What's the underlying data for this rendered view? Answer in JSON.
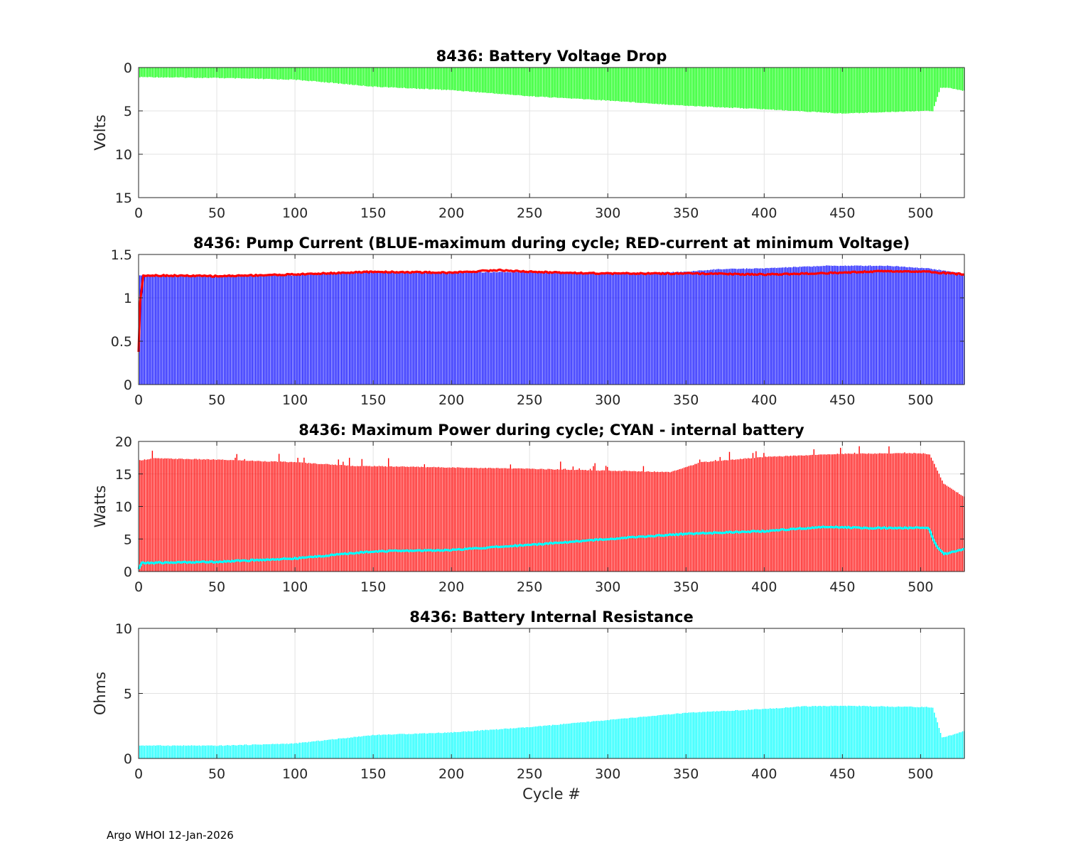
{
  "footer": "Argo WHOI 12-Jan-2026",
  "colors": {
    "voltage": "#00ff00",
    "pump_max": "#0000ff",
    "pump_min_volt": "#ff0000",
    "power": "#ff0000",
    "internal": "#00ffff",
    "resistance": "#00ffff"
  },
  "chart_data": [
    {
      "type": "bar",
      "title": "8436: Battery Voltage Drop",
      "xlabel": "",
      "ylabel": "Volts",
      "xlim": [
        0,
        528
      ],
      "ylim": [
        0,
        15
      ],
      "y_reversed": true,
      "xticks": [
        0,
        50,
        100,
        150,
        200,
        250,
        300,
        350,
        400,
        450,
        500
      ],
      "yticks": [
        0,
        5,
        10,
        15
      ],
      "grid": true,
      "series": [
        {
          "role": "bars",
          "color": "#00ff00",
          "keypoints": [
            [
              1,
              1.1
            ],
            [
              50,
              1.2
            ],
            [
              100,
              1.4
            ],
            [
              120,
              1.7
            ],
            [
              150,
              2.2
            ],
            [
              200,
              2.6
            ],
            [
              250,
              3.3
            ],
            [
              300,
              3.8
            ],
            [
              350,
              4.4
            ],
            [
              400,
              4.8
            ],
            [
              450,
              5.3
            ],
            [
              500,
              5.0
            ],
            [
              508,
              5.0
            ],
            [
              513,
              2.3
            ],
            [
              520,
              2.4
            ],
            [
              528,
              2.7
            ]
          ]
        }
      ]
    },
    {
      "type": "bar",
      "title": "8436: Pump Current (BLUE-maximum during cycle; RED-current at minimum Voltage)",
      "xlabel": "",
      "ylabel": "",
      "xlim": [
        0,
        528
      ],
      "ylim": [
        0,
        1.5
      ],
      "xticks": [
        0,
        50,
        100,
        150,
        200,
        250,
        300,
        350,
        400,
        450,
        500
      ],
      "yticks": [
        0,
        0.5,
        1,
        1.5
      ],
      "ytick_labels": [
        "0",
        "0.5",
        "1",
        "1.5"
      ],
      "grid": true,
      "series": [
        {
          "name": "BLUE-maximum during cycle",
          "role": "bars",
          "color": "#0000ff",
          "keypoints": [
            [
              1,
              1.26
            ],
            [
              50,
              1.25
            ],
            [
              100,
              1.26
            ],
            [
              150,
              1.3
            ],
            [
              200,
              1.29
            ],
            [
              250,
              1.3
            ],
            [
              300,
              1.28
            ],
            [
              350,
              1.3
            ],
            [
              370,
              1.33
            ],
            [
              400,
              1.34
            ],
            [
              440,
              1.37
            ],
            [
              480,
              1.37
            ],
            [
              505,
              1.34
            ],
            [
              528,
              1.28
            ]
          ]
        },
        {
          "name": "RED-current at minimum Voltage",
          "role": "line",
          "color": "#ff0000",
          "keypoints": [
            [
              0,
              0.38
            ],
            [
              1,
              0.95
            ],
            [
              3,
              1.26
            ],
            [
              50,
              1.25
            ],
            [
              100,
              1.27
            ],
            [
              150,
              1.3
            ],
            [
              200,
              1.29
            ],
            [
              230,
              1.32
            ],
            [
              250,
              1.3
            ],
            [
              300,
              1.28
            ],
            [
              350,
              1.28
            ],
            [
              400,
              1.27
            ],
            [
              430,
              1.28
            ],
            [
              480,
              1.31
            ],
            [
              505,
              1.3
            ],
            [
              528,
              1.27
            ]
          ]
        }
      ]
    },
    {
      "type": "bar",
      "title": "8436: Maximum Power during cycle; CYAN - internal battery",
      "xlabel": "",
      "ylabel": "Watts",
      "xlim": [
        0,
        528
      ],
      "ylim": [
        0,
        20
      ],
      "xticks": [
        0,
        50,
        100,
        150,
        200,
        250,
        300,
        350,
        400,
        450,
        500
      ],
      "yticks": [
        0,
        5,
        10,
        15,
        20
      ],
      "grid": true,
      "series": [
        {
          "name": "Maximum Power",
          "role": "bars",
          "color": "#ff0000",
          "keypoints": [
            [
              1,
              17.1
            ],
            [
              10,
              17.4
            ],
            [
              50,
              17.2
            ],
            [
              100,
              16.8
            ],
            [
              140,
              16.2
            ],
            [
              150,
              16.2
            ],
            [
              200,
              16.0
            ],
            [
              250,
              15.8
            ],
            [
              300,
              15.5
            ],
            [
              340,
              15.3
            ],
            [
              360,
              16.8
            ],
            [
              400,
              17.6
            ],
            [
              450,
              18.1
            ],
            [
              500,
              18.2
            ],
            [
              506,
              18.0
            ],
            [
              515,
              13.5
            ],
            [
              528,
              11.5
            ]
          ]
        },
        {
          "name": "internal battery",
          "role": "line",
          "color": "#00ffff",
          "keypoints": [
            [
              0,
              0.4
            ],
            [
              2,
              1.3
            ],
            [
              50,
              1.5
            ],
            [
              100,
              2.0
            ],
            [
              150,
              3.1
            ],
            [
              200,
              3.3
            ],
            [
              250,
              4.1
            ],
            [
              300,
              5.0
            ],
            [
              350,
              5.8
            ],
            [
              400,
              6.2
            ],
            [
              440,
              6.9
            ],
            [
              460,
              6.7
            ],
            [
              505,
              6.7
            ],
            [
              510,
              4.0
            ],
            [
              515,
              2.7
            ],
            [
              528,
              3.4
            ]
          ]
        }
      ]
    },
    {
      "type": "bar",
      "title": "8436: Battery Internal Resistance",
      "xlabel": "Cycle #",
      "ylabel": "Ohms",
      "xlim": [
        0,
        528
      ],
      "ylim": [
        0,
        10
      ],
      "xticks": [
        0,
        50,
        100,
        150,
        200,
        250,
        300,
        350,
        400,
        450,
        500
      ],
      "yticks": [
        0,
        5,
        10
      ],
      "grid": true,
      "series": [
        {
          "role": "bars",
          "color": "#00ffff",
          "keypoints": [
            [
              1,
              1.0
            ],
            [
              50,
              0.98
            ],
            [
              100,
              1.15
            ],
            [
              150,
              1.8
            ],
            [
              200,
              2.0
            ],
            [
              250,
              2.4
            ],
            [
              300,
              2.95
            ],
            [
              350,
              3.5
            ],
            [
              400,
              3.8
            ],
            [
              425,
              4.0
            ],
            [
              450,
              4.05
            ],
            [
              505,
              3.95
            ],
            [
              508,
              3.9
            ],
            [
              514,
              1.6
            ],
            [
              520,
              1.8
            ],
            [
              528,
              2.1
            ]
          ]
        }
      ]
    }
  ]
}
